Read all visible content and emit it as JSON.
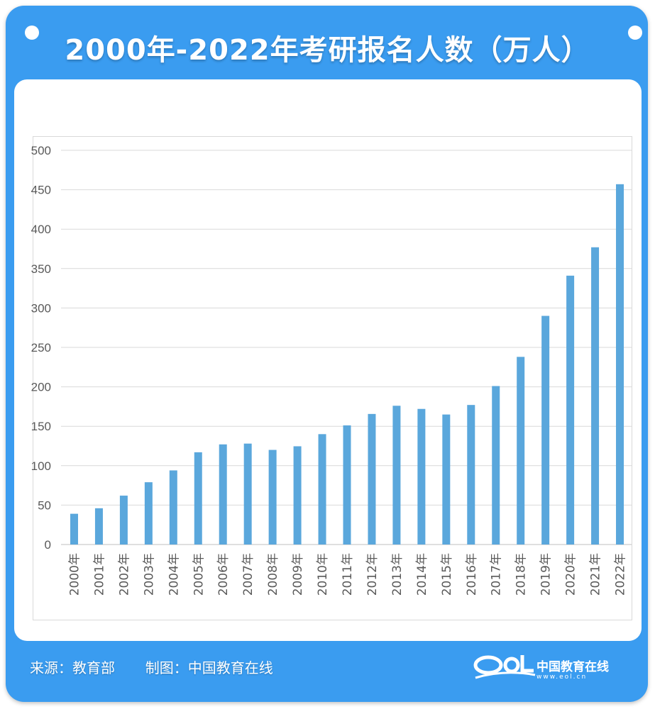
{
  "title": "2000年-2022年考研报名人数（万人）",
  "footer": {
    "source": "来源：教育部",
    "maker": "制图：中国教育在线",
    "logo_name": "中国教育在线",
    "logo_url": "www.eol.cn"
  },
  "colors": {
    "frame": "#3a9cf0",
    "bar": "#5aa7dc",
    "grid": "#d9d9d9",
    "text": "#595959"
  },
  "chart_data": {
    "type": "bar",
    "title": "",
    "xlabel": "",
    "ylabel": "",
    "ylim": [
      0,
      500
    ],
    "yticks": [
      0,
      50,
      100,
      150,
      200,
      250,
      300,
      350,
      400,
      450,
      500
    ],
    "grid": true,
    "categories": [
      "2000年",
      "2001年",
      "2002年",
      "2003年",
      "2004年",
      "2005年",
      "2006年",
      "2007年",
      "2008年",
      "2009年",
      "2010年",
      "2011年",
      "2012年",
      "2013年",
      "2014年",
      "2015年",
      "2016年",
      "2017年",
      "2018年",
      "2019年",
      "2020年",
      "2021年",
      "2022年"
    ],
    "values": [
      39,
      46,
      62,
      79,
      94,
      117,
      127,
      128,
      120,
      124.6,
      140,
      151.1,
      165.6,
      176,
      172,
      164.9,
      177,
      201,
      238,
      290,
      341,
      377,
      457
    ]
  }
}
